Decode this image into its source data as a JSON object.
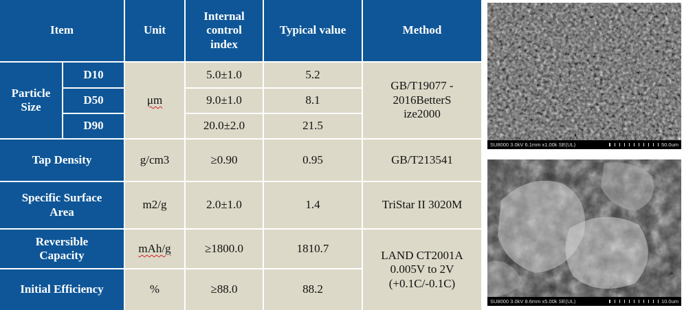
{
  "table": {
    "headers": {
      "item": "Item",
      "unit": "Unit",
      "internal": "Internal control index",
      "typical": "Typical value",
      "method": "Method"
    },
    "particle_size": {
      "label": "Particle Size",
      "unit": "μm",
      "method": "GB/T19077 - 2016BetterS ize2000",
      "rows": [
        {
          "name": "D10",
          "internal": "5.0±1.0",
          "typical": "5.2"
        },
        {
          "name": "D50",
          "internal": "9.0±1.0",
          "typical": "8.1"
        },
        {
          "name": "D90",
          "internal": "20.0±2.0",
          "typical": "21.5"
        }
      ]
    },
    "tap_density": {
      "label": "Tap Density",
      "unit": "g/cm3",
      "internal": "≥0.90",
      "typical": "0.95",
      "method": "GB/T213541"
    },
    "ssa": {
      "label": "Specific Surface Area",
      "unit": "m2/g",
      "internal": "2.0±1.0",
      "typical": "1.4",
      "method": "TriStar II 3020M"
    },
    "capacity": {
      "label": "Reversible Capacity",
      "unit": "mAh/g",
      "internal": "≥1800.0",
      "typical": "1810.7"
    },
    "efficiency": {
      "label": "Initial Efficiency",
      "unit": "%",
      "internal": "≥88.0",
      "typical": "88.2"
    },
    "land_method": "LAND CT2001A 0.005V to 2V (+0.1C/-0.1C)"
  },
  "images": [
    {
      "info": "SU8000 3.0kV 6.1mm x1.00k SE(UL)",
      "scale": "50.0um",
      "subject": "sem-micrograph-particles"
    },
    {
      "info": "SU8000 3.0kV 8.6mm x5.00k SE(UL)",
      "scale": "10.0um",
      "subject": "sem-micrograph-flakes"
    }
  ]
}
